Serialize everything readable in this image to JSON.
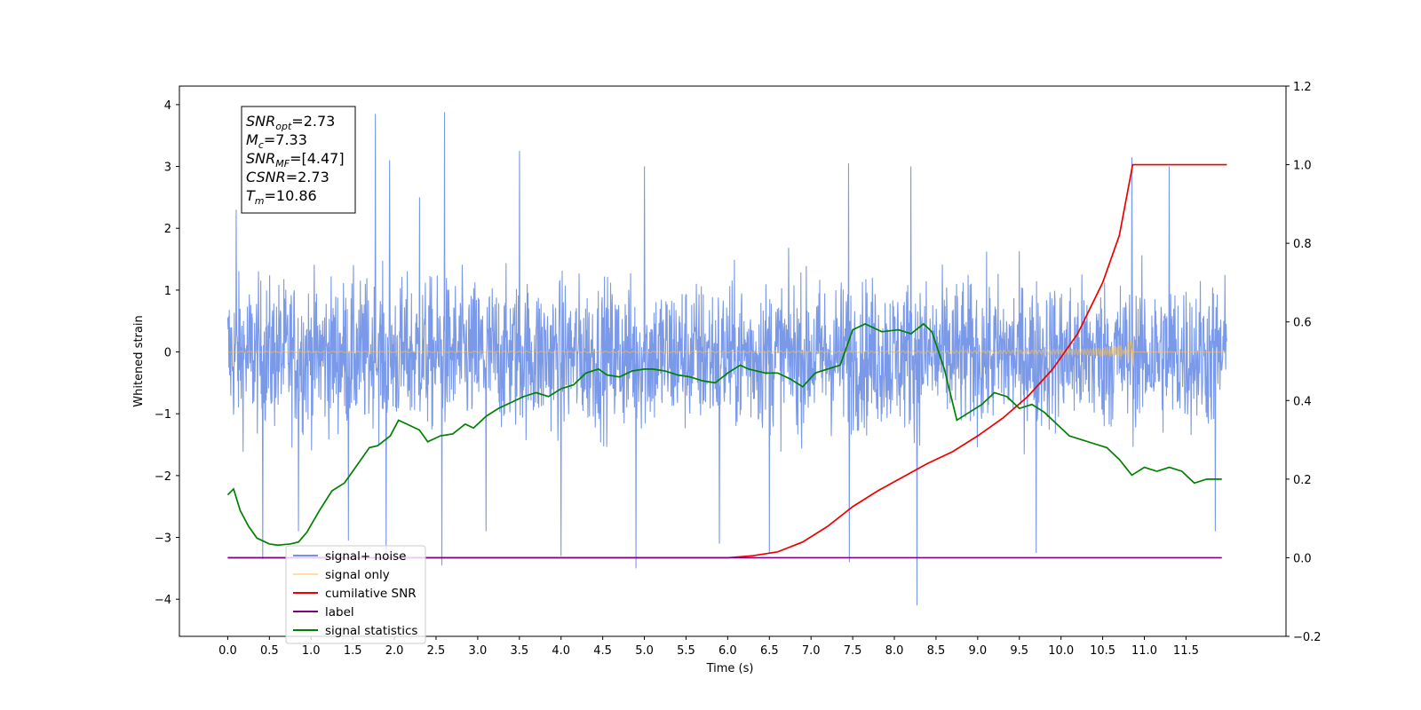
{
  "chart_data": {
    "type": "line",
    "title": "",
    "xlabel": "Time (s)",
    "ylabel": "Whitened strain",
    "xlim": [
      -0.58,
      12.7
    ],
    "ylim": [
      -4.6,
      4.3
    ],
    "y2lim": [
      -0.2,
      1.2
    ],
    "xticks": [
      "0.0",
      "0.5",
      "1.0",
      "1.5",
      "2.0",
      "2.5",
      "3.0",
      "3.5",
      "4.0",
      "4.5",
      "5.0",
      "5.5",
      "6.0",
      "6.5",
      "7.0",
      "7.5",
      "8.0",
      "8.5",
      "9.0",
      "9.5",
      "10.0",
      "10.5",
      "11.0",
      "11.5"
    ],
    "yticks_left": [
      "−4",
      "−3",
      "−2",
      "−1",
      "0",
      "1",
      "2",
      "3",
      "4"
    ],
    "yticks_right": [
      "−0.2",
      "0.0",
      "0.2",
      "0.4",
      "0.6",
      "0.8",
      "1.0",
      "1.2"
    ],
    "legend_position": "lower-left",
    "annotation_lines": [
      {
        "sym": "SNR",
        "sub": "opt",
        "val": "=2.73"
      },
      {
        "sym": "M",
        "sub": "c",
        "val": "=7.33"
      },
      {
        "sym": "SNR",
        "sub": "MF",
        "val": "=[4.47]"
      },
      {
        "sym": "CSNR",
        "sub": "",
        "val": "=2.73"
      },
      {
        "sym": "T",
        "sub": "m",
        "val": "=10.86"
      }
    ],
    "series": [
      {
        "name": "signal+ noise",
        "color": "#7393e8",
        "axis": "left",
        "kind": "noise",
        "x_range": [
          0.0,
          11.99
        ],
        "typical_range": [
          -1.6,
          1.5
        ],
        "spikes": [
          {
            "x": 0.1,
            "y": 2.3
          },
          {
            "x": 0.42,
            "y": -3.35
          },
          {
            "x": 0.85,
            "y": -2.9
          },
          {
            "x": 1.45,
            "y": -3.05
          },
          {
            "x": 1.77,
            "y": 3.85
          },
          {
            "x": 1.9,
            "y": -3.3
          },
          {
            "x": 1.94,
            "y": 3.1
          },
          {
            "x": 2.3,
            "y": 2.5
          },
          {
            "x": 2.6,
            "y": 3.88
          },
          {
            "x": 2.57,
            "y": -3.45
          },
          {
            "x": 3.1,
            "y": -2.9
          },
          {
            "x": 3.5,
            "y": 3.25
          },
          {
            "x": 4.0,
            "y": -3.3
          },
          {
            "x": 4.9,
            "y": -3.5
          },
          {
            "x": 5.0,
            "y": 3.0
          },
          {
            "x": 5.9,
            "y": -3.1
          },
          {
            "x": 6.5,
            "y": -3.25
          },
          {
            "x": 7.45,
            "y": 3.05
          },
          {
            "x": 7.46,
            "y": -3.4
          },
          {
            "x": 8.27,
            "y": -4.1
          },
          {
            "x": 8.2,
            "y": 3.0
          },
          {
            "x": 9.7,
            "y": -3.25
          },
          {
            "x": 10.85,
            "y": 3.15
          },
          {
            "x": 11.3,
            "y": 3.0
          },
          {
            "x": 11.85,
            "y": -2.9
          }
        ]
      },
      {
        "name": "signal only",
        "color": "#ffc04d",
        "axis": "left",
        "kind": "chirp",
        "x_range": [
          0.0,
          11.99
        ],
        "merger_time": 10.86,
        "peak_amplitude": 0.25
      },
      {
        "name": "cumilative SNR",
        "color": "#ee0000",
        "axis": "right",
        "x": [
          0.0,
          6.0,
          6.3,
          6.6,
          6.9,
          7.2,
          7.5,
          7.8,
          8.1,
          8.4,
          8.7,
          9.0,
          9.3,
          9.6,
          9.9,
          10.2,
          10.5,
          10.7,
          10.86,
          10.861,
          11.99
        ],
        "values": [
          0.0,
          0.0,
          0.005,
          0.015,
          0.04,
          0.08,
          0.13,
          0.17,
          0.205,
          0.24,
          0.27,
          0.31,
          0.355,
          0.41,
          0.48,
          0.57,
          0.7,
          0.82,
          1.0,
          1.0,
          1.0
        ]
      },
      {
        "name": "label",
        "color": "#800080",
        "axis": "right",
        "x": [
          0.0,
          11.93
        ],
        "values": [
          0.0,
          0.0
        ]
      },
      {
        "name": "signal statistics",
        "color": "#008000",
        "axis": "right",
        "x": [
          0.0,
          0.07,
          0.15,
          0.25,
          0.35,
          0.5,
          0.6,
          0.65,
          0.75,
          0.85,
          0.95,
          1.1,
          1.25,
          1.4,
          1.55,
          1.7,
          1.8,
          1.95,
          2.05,
          2.15,
          2.3,
          2.4,
          2.55,
          2.7,
          2.85,
          2.95,
          3.1,
          3.25,
          3.4,
          3.55,
          3.7,
          3.85,
          4.0,
          4.15,
          4.3,
          4.45,
          4.55,
          4.7,
          4.85,
          5.0,
          5.1,
          5.25,
          5.4,
          5.55,
          5.7,
          5.85,
          6.0,
          6.15,
          6.25,
          6.35,
          6.45,
          6.6,
          6.75,
          6.9,
          7.05,
          7.2,
          7.35,
          7.5,
          7.65,
          7.85,
          8.05,
          8.2,
          8.35,
          8.45,
          8.6,
          8.75,
          8.9,
          9.05,
          9.2,
          9.35,
          9.5,
          9.65,
          9.8,
          9.95,
          10.1,
          10.25,
          10.4,
          10.55,
          10.7,
          10.85,
          11.0,
          11.15,
          11.3,
          11.45,
          11.6,
          11.75,
          11.85,
          11.93
        ],
        "values": [
          0.16,
          0.175,
          0.12,
          0.08,
          0.05,
          0.035,
          0.032,
          0.033,
          0.035,
          0.04,
          0.065,
          0.12,
          0.17,
          0.19,
          0.235,
          0.28,
          0.285,
          0.31,
          0.35,
          0.34,
          0.325,
          0.295,
          0.31,
          0.315,
          0.34,
          0.33,
          0.36,
          0.38,
          0.395,
          0.41,
          0.42,
          0.41,
          0.43,
          0.44,
          0.47,
          0.48,
          0.465,
          0.46,
          0.475,
          0.48,
          0.48,
          0.475,
          0.465,
          0.46,
          0.45,
          0.445,
          0.47,
          0.49,
          0.48,
          0.475,
          0.47,
          0.47,
          0.455,
          0.435,
          0.47,
          0.48,
          0.49,
          0.58,
          0.595,
          0.575,
          0.58,
          0.57,
          0.595,
          0.575,
          0.48,
          0.35,
          0.37,
          0.39,
          0.42,
          0.41,
          0.38,
          0.39,
          0.37,
          0.34,
          0.31,
          0.3,
          0.29,
          0.28,
          0.25,
          0.21,
          0.23,
          0.22,
          0.23,
          0.22,
          0.19,
          0.2,
          0.2,
          0.2
        ]
      }
    ]
  }
}
